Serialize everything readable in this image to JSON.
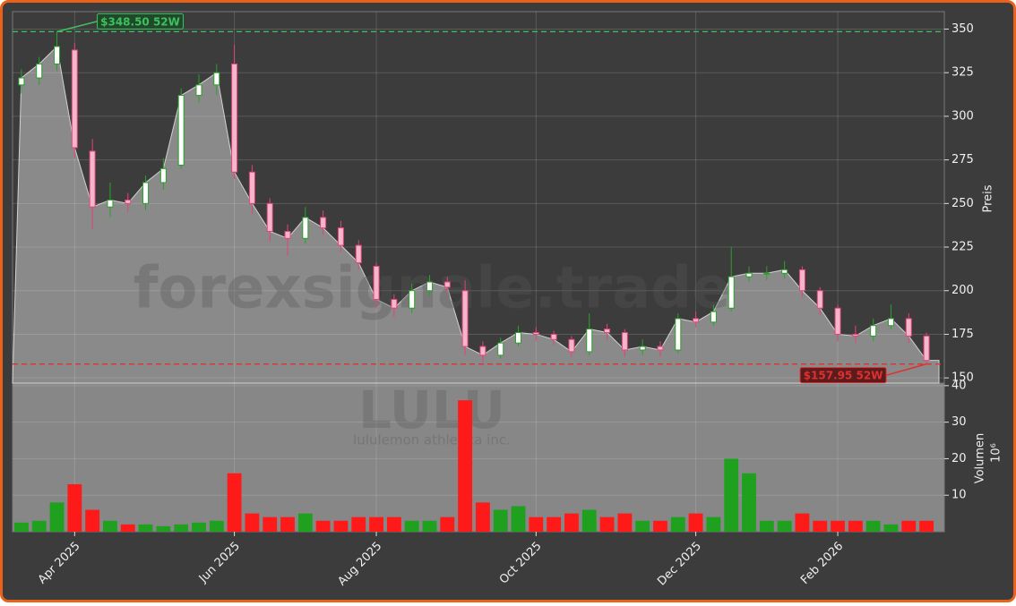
{
  "chart_data": [
    {
      "type": "candlestick",
      "categories": [
        null,
        null,
        null,
        "Apr 2025",
        null,
        null,
        null,
        null,
        null,
        null,
        null,
        null,
        "Jun 2025",
        null,
        null,
        null,
        null,
        null,
        null,
        null,
        "Aug 2025",
        null,
        null,
        null,
        null,
        null,
        null,
        null,
        null,
        "Oct 2025",
        null,
        null,
        null,
        null,
        null,
        null,
        null,
        null,
        "Dec 2025",
        null,
        null,
        null,
        null,
        null,
        null,
        null,
        "Feb 2026",
        null,
        null,
        null,
        null,
        null
      ],
      "open": [
        318,
        322,
        330,
        338,
        280,
        248,
        252,
        250,
        262,
        272,
        312,
        318,
        330,
        268,
        250,
        234,
        230,
        242,
        236,
        226,
        214,
        195,
        190,
        200,
        205,
        200,
        168,
        163,
        170,
        176,
        175,
        172,
        165,
        178,
        176,
        166,
        168,
        166,
        184,
        182,
        190,
        208,
        210,
        210,
        212,
        200,
        190,
        175,
        174,
        180,
        184,
        174
      ],
      "high": [
        327,
        334,
        348.5,
        342,
        287,
        262,
        256,
        266,
        276,
        316,
        324,
        330,
        341,
        272,
        253,
        238,
        248,
        246,
        240,
        229,
        216,
        198,
        204,
        209,
        208,
        206,
        171,
        173,
        180,
        179,
        177,
        174,
        187,
        181,
        178,
        172,
        171,
        187,
        188,
        192,
        225,
        214,
        214,
        217,
        214,
        202,
        192,
        180,
        184,
        192,
        187,
        176
      ],
      "low": [
        313,
        318,
        326,
        276,
        235,
        242,
        245,
        246,
        258,
        270,
        308,
        312,
        264,
        244,
        228,
        220,
        227,
        232,
        222,
        212,
        190,
        185,
        187,
        197,
        198,
        163,
        159,
        161,
        168,
        171,
        169,
        162,
        163,
        172,
        162,
        163,
        162,
        164,
        179,
        180,
        188,
        205,
        206,
        207,
        196,
        186,
        171,
        170,
        171,
        178,
        170,
        157.95
      ],
      "close": [
        322,
        330,
        340,
        282,
        248,
        252,
        250,
        262,
        270,
        312,
        318,
        325,
        268,
        250,
        234,
        230,
        242,
        236,
        226,
        216,
        195,
        190,
        200,
        205,
        202,
        168,
        163,
        170,
        176,
        175,
        172,
        165,
        178,
        176,
        166,
        168,
        166,
        184,
        182,
        188,
        208,
        210,
        210,
        212,
        200,
        190,
        175,
        174,
        180,
        184,
        174,
        160
      ],
      "up_color": "#2ca02c",
      "down_color": "#e0457a",
      "area_color": "#8a8a8a",
      "ylim": [
        147,
        360
      ],
      "yticks": [
        150,
        175,
        200,
        225,
        250,
        275,
        300,
        325,
        350
      ],
      "ylabel": "Preis",
      "grid": true,
      "annotations": [
        {
          "value": 348.5,
          "label": "$348.50 52W",
          "color": "#3fbf5f"
        },
        {
          "value": 157.95,
          "label": "$157.95 52W",
          "color": "#e03030"
        }
      ],
      "watermark": "forexsignale.trade",
      "symbol": "LULU",
      "company": "lululemon athletica inc."
    },
    {
      "type": "bar",
      "values": [
        2.5,
        3,
        8,
        13,
        6,
        3,
        2,
        2,
        1.5,
        2,
        2.5,
        3,
        16,
        5,
        4,
        4,
        5,
        3,
        3,
        4,
        4,
        4,
        3,
        3,
        4,
        36,
        8,
        6,
        7,
        4,
        4,
        5,
        6,
        4,
        5,
        3,
        3,
        4,
        5,
        4,
        20,
        16,
        3,
        3,
        5,
        3,
        3,
        3,
        3,
        2,
        3,
        3
      ],
      "up_color": "#1fa01f",
      "down_color": "#ff1a1a",
      "ylim": [
        0,
        40.7
      ],
      "yticks": [
        10,
        20,
        30,
        40
      ],
      "ylabel": "Volumen",
      "offset_label": "10⁶"
    }
  ]
}
